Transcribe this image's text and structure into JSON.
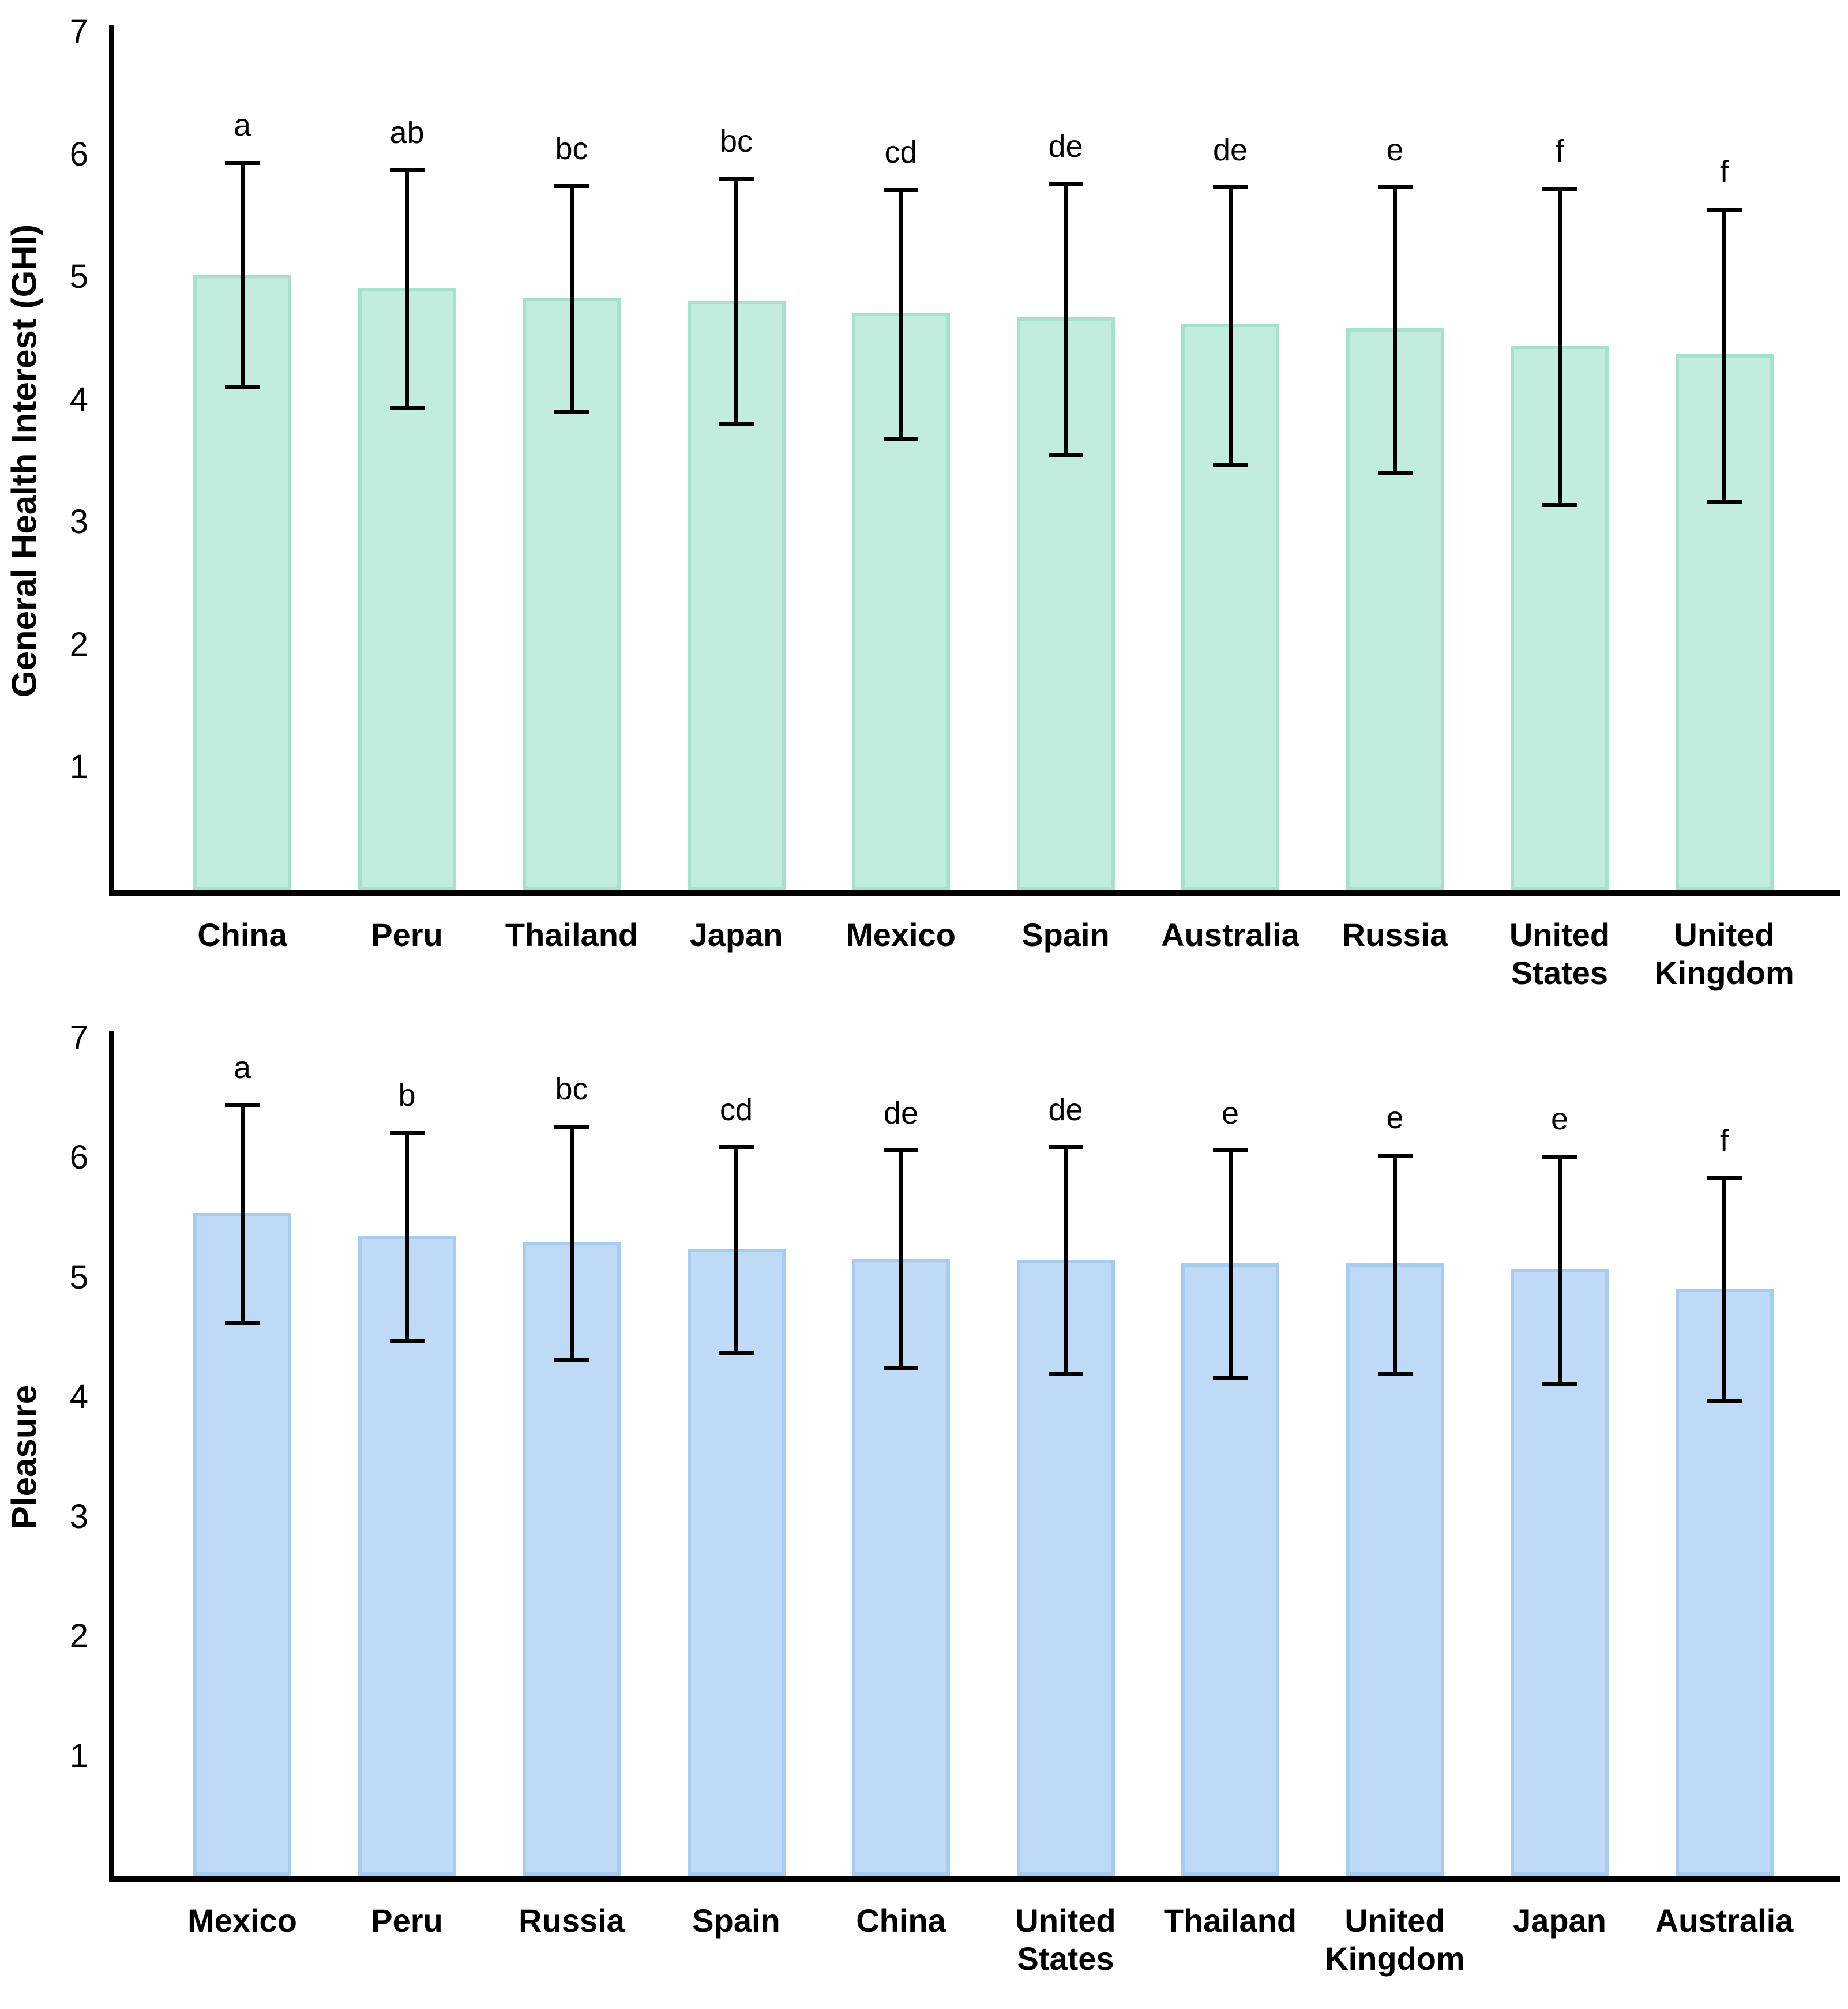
{
  "figure": {
    "background": "#FFFFFF",
    "text_color": "#000000"
  },
  "chart_data": [
    {
      "type": "bar",
      "ylabel": "General Health Interest (GHI)",
      "xlabel": "",
      "ylim": [
        0,
        7
      ],
      "yticks": [
        1,
        2,
        3,
        4,
        5,
        6,
        7
      ],
      "grid": false,
      "legend": "none",
      "bar_fill": "#C2EDDE",
      "bar_border": "#A5E2CC",
      "error_bar_color": "#000000",
      "categories": [
        "China",
        "Peru",
        "Thailand",
        "Japan",
        "Mexico",
        "Spain",
        "Australia",
        "Russia",
        "United States",
        "United Kingdom"
      ],
      "values": [
        5.02,
        4.91,
        4.83,
        4.81,
        4.71,
        4.67,
        4.62,
        4.58,
        4.44,
        4.37
      ],
      "error_high": [
        5.93,
        5.87,
        5.74,
        5.8,
        5.71,
        5.76,
        5.73,
        5.73,
        5.72,
        5.55
      ],
      "error_low": [
        4.1,
        3.93,
        3.9,
        3.8,
        3.68,
        3.55,
        3.47,
        3.4,
        3.14,
        3.17
      ],
      "sig_letters": [
        "a",
        "ab",
        "bc",
        "bc",
        "cd",
        "de",
        "de",
        "e",
        "f",
        "f"
      ]
    },
    {
      "type": "bar",
      "ylabel": "Pleasure",
      "xlabel": "",
      "ylim": [
        0,
        7
      ],
      "yticks": [
        1,
        2,
        3,
        4,
        5,
        6,
        7
      ],
      "grid": false,
      "legend": "none",
      "bar_fill": "#BFDAF7",
      "bar_border": "#A6CCF0",
      "error_bar_color": "#000000",
      "categories": [
        "Mexico",
        "Peru",
        "Russia",
        "Spain",
        "China",
        "United States",
        "Thailand",
        "United Kingdom",
        "Japan",
        "Australia"
      ],
      "values": [
        5.54,
        5.35,
        5.3,
        5.24,
        5.16,
        5.15,
        5.12,
        5.12,
        5.07,
        4.91
      ],
      "error_high": [
        6.44,
        6.21,
        6.26,
        6.09,
        6.06,
        6.09,
        6.06,
        6.02,
        6.01,
        5.83
      ],
      "error_low": [
        4.62,
        4.47,
        4.31,
        4.37,
        4.24,
        4.19,
        4.16,
        4.19,
        4.11,
        3.97
      ],
      "sig_letters": [
        "a",
        "b",
        "bc",
        "cd",
        "de",
        "de",
        "e",
        "e",
        "e",
        "f"
      ]
    }
  ]
}
